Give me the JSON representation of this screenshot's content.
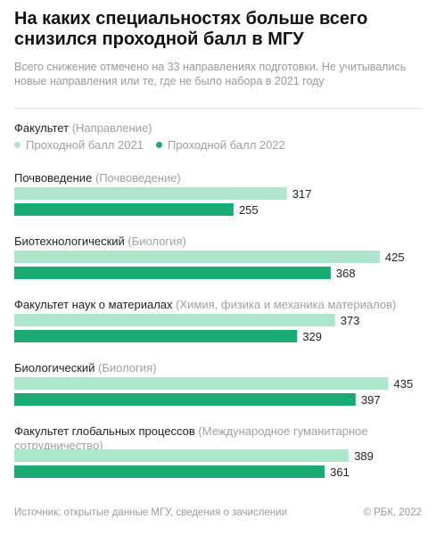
{
  "header": {
    "title": "На каких специальностях больше всего снизился проходной балл в МГУ",
    "subtitle": "Всего снижение отмечено на 33 направлениях подготовки. Не учитывались новые направления или те, где не было набора в 2021 году"
  },
  "legend": {
    "faculty_label": "Факультет",
    "direction_label": "(Направление)",
    "series_2021": "Проходной балл 2021",
    "series_2022": "Проходной балл 2022"
  },
  "colors": {
    "series_2021": "#ade5cd",
    "series_2022": "#1aab74"
  },
  "chart_data": {
    "type": "bar",
    "orientation": "horizontal",
    "categories": [
      {
        "faculty": "Почвоведение",
        "direction": "(Почвоведение)"
      },
      {
        "faculty": "Биотехнологический",
        "direction": "(Биология)"
      },
      {
        "faculty": "Факультет наук о материалах",
        "direction": "(Химия, физика и механика материалов)"
      },
      {
        "faculty": "Биологический",
        "direction": "(Биология)"
      },
      {
        "faculty": "Факультет глобальных процессов",
        "direction": "(Международное гуманитарное сотрудничество)"
      }
    ],
    "series": [
      {
        "name": "Проходной балл 2021",
        "values": [
          317,
          425,
          373,
          435,
          389
        ]
      },
      {
        "name": "Проходной балл 2022",
        "values": [
          255,
          368,
          329,
          397,
          361
        ]
      }
    ]
  },
  "footer": {
    "source": "Источник: открытые данные МГУ, сведения о зачислении",
    "copyright": "© РБК, 2022"
  }
}
